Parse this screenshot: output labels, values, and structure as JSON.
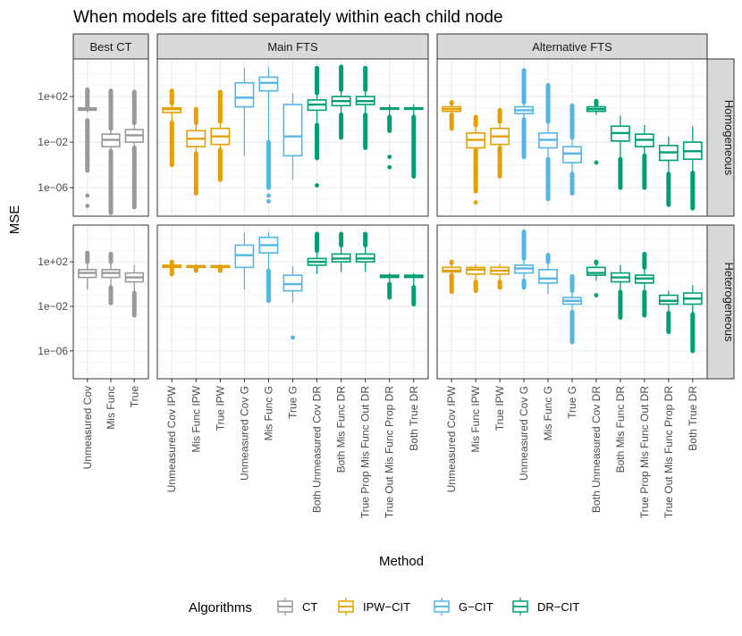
{
  "chart_data": {
    "type": "boxplot",
    "title": "When models are fitted separately within each child node",
    "xlabel": "Method",
    "ylabel": "MSE",
    "y_scale": "log10",
    "ylim_log10": [
      -8.5,
      5.3
    ],
    "y_ticks": [
      {
        "label": "1e+02",
        "log10": 2
      },
      {
        "label": "1e−02",
        "log10": -2
      },
      {
        "label": "1e−06",
        "log10": -6
      }
    ],
    "column_facets": [
      "Best CT",
      "Main FTS",
      "Alternative FTS"
    ],
    "row_facets": [
      "Homogeneous",
      "Heterogeneous"
    ],
    "legend": {
      "title": "Algorithms",
      "items": [
        {
          "key": "CT",
          "label": "CT",
          "color": "#999999"
        },
        {
          "key": "IPW",
          "label": "IPW−CIT",
          "color": "#E69F00"
        },
        {
          "key": "G",
          "label": "G−CIT",
          "color": "#56B4E9"
        },
        {
          "key": "DR",
          "label": "DR−CIT",
          "color": "#009E73"
        }
      ]
    },
    "panels": [
      {
        "col": 0,
        "row": 0,
        "boxes": [
          {
            "label": "Unmeasured Cov",
            "algo": "CT",
            "lo": 0.6,
            "q1": 0.8,
            "med": 0.9,
            "q3": 1.0,
            "hi": 1.1,
            "outliers": [
              [
                1.1,
                2.6
              ],
              [
                -0.1,
                -4.5
              ],
              -6.7,
              -7.6
            ]
          },
          {
            "label": "Mis Func",
            "algo": "CT",
            "lo": -2.8,
            "q1": -2.4,
            "med": -1.8,
            "q3": -1.3,
            "hi": -0.8,
            "outliers": [
              [
                -0.8,
                2.5
              ],
              [
                -2.8,
                -8.2
              ]
            ]
          },
          {
            "label": "True",
            "algo": "CT",
            "lo": -2.5,
            "q1": -2.0,
            "med": -1.4,
            "q3": -0.9,
            "hi": -0.3,
            "outliers": [
              [
                -0.3,
                2.4
              ],
              [
                -2.5,
                -7.7
              ]
            ]
          }
        ]
      },
      {
        "col": 1,
        "row": 0,
        "boxes": [
          {
            "label": "Unmeasured Cov IPW",
            "algo": "IPW",
            "lo": -0.3,
            "q1": 0.6,
            "med": 0.9,
            "q3": 1.0,
            "hi": 1.4,
            "outliers": [
              [
                1.4,
                2.5
              ],
              [
                -0.3,
                -4.0
              ]
            ]
          },
          {
            "label": "Mis Func IPW",
            "algo": "IPW",
            "lo": -3.0,
            "q1": -2.4,
            "med": -1.7,
            "q3": -1.0,
            "hi": -0.3,
            "outliers": [
              [
                -0.3,
                0.9
              ],
              [
                -3.0,
                -6.5
              ]
            ]
          },
          {
            "label": "True IPW",
            "algo": "IPW",
            "lo": -2.7,
            "q1": -2.2,
            "med": -1.5,
            "q3": -0.8,
            "hi": -0.2,
            "outliers": [
              [
                -0.2,
                2.4
              ],
              [
                -2.7,
                -5.3
              ]
            ]
          },
          {
            "label": "Unmeasured Cov G",
            "algo": "G",
            "lo": -3.2,
            "q1": 1.1,
            "med": 1.9,
            "q3": 3.2,
            "hi": 4.5,
            "outliers": []
          },
          {
            "label": "Mis Func G",
            "algo": "G",
            "lo": -2.0,
            "q1": 2.5,
            "med": 3.2,
            "q3": 3.7,
            "hi": 4.6,
            "outliers": [
              [
                -2.0,
                -6.0
              ],
              -6.7,
              -7.2
            ]
          },
          {
            "label": "True G",
            "algo": "G",
            "lo": -5.3,
            "q1": -3.2,
            "med": -1.5,
            "q3": 1.3,
            "hi": 2.3,
            "outliers": []
          },
          {
            "label": "Both Unmeasured Cov DR",
            "algo": "DR",
            "lo": -0.5,
            "q1": 0.8,
            "med": 1.3,
            "q3": 1.7,
            "hi": 2.3,
            "outliers": [
              [
                2.3,
                4.5
              ],
              [
                -0.5,
                -3.4
              ],
              -5.8
            ]
          },
          {
            "label": "Both Mis Func DR",
            "algo": "DR",
            "lo": 0.4,
            "q1": 1.2,
            "med": 1.6,
            "q3": 2.0,
            "hi": 2.6,
            "outliers": [
              [
                2.6,
                4.6
              ],
              [
                0.4,
                -1.6
              ]
            ]
          },
          {
            "label": "True Prop Mis Func Out DR",
            "algo": "DR",
            "lo": 0.4,
            "q1": 1.3,
            "med": 1.6,
            "q3": 2.0,
            "hi": 2.6,
            "outliers": [
              [
                2.6,
                4.5
              ],
              [
                0.4,
                -2.5
              ]
            ]
          },
          {
            "label": "True Out Mis Func Prop DR",
            "algo": "DR",
            "lo": 0.2,
            "q1": 0.9,
            "med": 0.95,
            "q3": 1.0,
            "hi": 1.3,
            "outliers": [
              [
                0.2,
                -1.0
              ],
              -3.3,
              -4.2
            ]
          },
          {
            "label": "Both True DR",
            "algo": "DR",
            "lo": 0.2,
            "q1": 0.9,
            "med": 0.95,
            "q3": 1.0,
            "hi": 1.3,
            "outliers": [
              [
                0.2,
                -5.0
              ]
            ]
          }
        ]
      },
      {
        "col": 2,
        "row": 0,
        "boxes": [
          {
            "label": "Unmeasured Cov IPW",
            "algo": "IPW",
            "lo": 0.4,
            "q1": 0.7,
            "med": 0.9,
            "q3": 1.1,
            "hi": 1.4,
            "outliers": [
              [
                1.4,
                1.5
              ],
              [
                0.4,
                -0.8
              ]
            ]
          },
          {
            "label": "Mis Func IPW",
            "algo": "IPW",
            "lo": -2.7,
            "q1": -2.5,
            "med": -1.8,
            "q3": -1.2,
            "hi": -0.5,
            "outliers": [
              [
                -0.5,
                0.2
              ],
              [
                -2.7,
                -6.3
              ],
              -7.3
            ]
          },
          {
            "label": "True IPW",
            "algo": "IPW",
            "lo": -2.5,
            "q1": -2.2,
            "med": -1.5,
            "q3": -0.8,
            "hi": -0.2,
            "outliers": [
              [
                -0.2,
                0.8
              ],
              [
                -2.5,
                -5.0
              ]
            ]
          },
          {
            "label": "Unmeasured Cov G",
            "algo": "G",
            "lo": 0.0,
            "q1": 0.5,
            "med": 0.8,
            "q3": 1.1,
            "hi": 1.5,
            "outliers": [
              [
                1.5,
                4.3
              ],
              [
                0.0,
                -3.3
              ]
            ]
          },
          {
            "label": "Mis Func G",
            "algo": "G",
            "lo": -3.5,
            "q1": -2.5,
            "med": -1.8,
            "q3": -1.2,
            "hi": -0.2,
            "outliers": [
              [
                -0.2,
                3.0
              ],
              [
                -3.5,
                -7.0
              ]
            ]
          },
          {
            "label": "True G",
            "algo": "G",
            "lo": -4.8,
            "q1": -3.8,
            "med": -3.0,
            "q3": -2.4,
            "hi": -1.6,
            "outliers": [
              [
                -1.6,
                1.2
              ],
              [
                -4.8,
                -6.5
              ]
            ]
          },
          {
            "label": "Both Unmeasured Cov DR",
            "algo": "DR",
            "lo": 0.4,
            "q1": 0.7,
            "med": 0.9,
            "q3": 1.1,
            "hi": 1.3,
            "outliers": [
              [
                1.3,
                1.6
              ],
              -3.8
            ]
          },
          {
            "label": "Both Mis Func DR",
            "algo": "DR",
            "lo": -3.5,
            "q1": -1.9,
            "med": -1.2,
            "q3": -0.6,
            "hi": 0.3,
            "outliers": [
              [
                -3.5,
                -6.0
              ]
            ]
          },
          {
            "label": "True Prop Mis Func Out DR",
            "algo": "DR",
            "lo": -3.2,
            "q1": -2.4,
            "med": -1.8,
            "q3": -1.3,
            "hi": -0.5,
            "outliers": [
              [
                -3.2,
                -6.0
              ]
            ]
          },
          {
            "label": "True Out Mis Func Prop DR",
            "algo": "DR",
            "lo": -4.8,
            "q1": -3.6,
            "med": -2.9,
            "q3": -2.3,
            "hi": -1.5,
            "outliers": [
              [
                -4.8,
                -7.5
              ]
            ]
          },
          {
            "label": "Both True DR",
            "algo": "DR",
            "lo": -4.7,
            "q1": -3.5,
            "med": -2.8,
            "q3": -2.0,
            "hi": -0.6,
            "outliers": [
              [
                -4.7,
                -7.8
              ]
            ]
          }
        ]
      },
      {
        "col": 0,
        "row": 1,
        "boxes": [
          {
            "label": "Unmeasured Cov",
            "algo": "CT",
            "lo": -0.5,
            "q1": 0.6,
            "med": 1.0,
            "q3": 1.3,
            "hi": 2.0,
            "outliers": [
              [
                2.0,
                2.8
              ]
            ]
          },
          {
            "label": "Mis Func",
            "algo": "CT",
            "lo": -0.3,
            "q1": 0.6,
            "med": 1.0,
            "q3": 1.3,
            "hi": 2.0,
            "outliers": [
              [
                2.0,
                2.7
              ],
              [
                -0.3,
                -1.7
              ]
            ]
          },
          {
            "label": "True",
            "algo": "CT",
            "lo": -0.8,
            "q1": 0.2,
            "med": 0.6,
            "q3": 1.0,
            "hi": 1.7,
            "outliers": [
              [
                -0.8,
                -2.8
              ]
            ]
          }
        ]
      },
      {
        "col": 1,
        "row": 1,
        "boxes": [
          {
            "label": "Unmeasured Cov IPW",
            "algo": "IPW",
            "lo": 1.3,
            "q1": 1.5,
            "med": 1.6,
            "q3": 1.7,
            "hi": 1.9,
            "outliers": [
              [
                1.9,
                2.0
              ],
              [
                1.3,
                0.9
              ]
            ]
          },
          {
            "label": "Mis Func IPW",
            "algo": "IPW",
            "lo": 1.4,
            "q1": 1.5,
            "med": 1.6,
            "q3": 1.65,
            "hi": 1.8,
            "outliers": [
              [
                1.4,
                1.2
              ]
            ]
          },
          {
            "label": "True IPW",
            "algo": "IPW",
            "lo": 1.4,
            "q1": 1.5,
            "med": 1.6,
            "q3": 1.65,
            "hi": 1.8,
            "outliers": [
              [
                1.4,
                1.2
              ]
            ]
          },
          {
            "label": "Unmeasured Cov G",
            "algo": "G",
            "lo": -0.5,
            "q1": 1.5,
            "med": 2.6,
            "q3": 3.5,
            "hi": 4.6,
            "outliers": []
          },
          {
            "label": "Mis Func G",
            "algo": "G",
            "lo": 1.2,
            "q1": 2.8,
            "med": 3.5,
            "q3": 4.2,
            "hi": 4.7,
            "outliers": [
              [
                1.2,
                -1.5
              ]
            ]
          },
          {
            "label": "True G",
            "algo": "G",
            "lo": -1.7,
            "q1": -0.6,
            "med": 0.0,
            "q3": 0.8,
            "hi": 1.6,
            "outliers": [
              -4.8
            ]
          },
          {
            "label": "Both Unmeasured Cov DR",
            "algo": "DR",
            "lo": 0.9,
            "q1": 1.7,
            "med": 2.0,
            "q3": 2.3,
            "hi": 3.0,
            "outliers": [
              [
                3.0,
                4.5
              ]
            ]
          },
          {
            "label": "Both Mis Func DR",
            "algo": "DR",
            "lo": 1.1,
            "q1": 2.0,
            "med": 2.3,
            "q3": 2.7,
            "hi": 3.5,
            "outliers": [
              [
                3.5,
                4.5
              ]
            ]
          },
          {
            "label": "True Prop Mis Func Out DR",
            "algo": "DR",
            "lo": 1.1,
            "q1": 2.0,
            "med": 2.3,
            "q3": 2.7,
            "hi": 3.5,
            "outliers": [
              [
                3.5,
                4.5
              ]
            ]
          },
          {
            "label": "True Out Mis Func Prop DR",
            "algo": "DR",
            "lo": 0.0,
            "q1": 0.6,
            "med": 0.7,
            "q3": 0.8,
            "hi": 1.0,
            "outliers": [
              [
                0.0,
                -1.2
              ]
            ]
          },
          {
            "label": "Both True DR",
            "algo": "DR",
            "lo": -0.3,
            "q1": 0.6,
            "med": 0.7,
            "q3": 0.8,
            "hi": 1.0,
            "outliers": [
              [
                -0.3,
                -1.8
              ]
            ]
          }
        ]
      },
      {
        "col": 2,
        "row": 1,
        "boxes": [
          {
            "label": "Unmeasured Cov IPW",
            "algo": "IPW",
            "lo": 0.8,
            "q1": 1.1,
            "med": 1.2,
            "q3": 1.5,
            "hi": 1.9,
            "outliers": [
              [
                1.9,
                2.0
              ],
              [
                0.8,
                -0.7
              ]
            ]
          },
          {
            "label": "Mis Func IPW",
            "algo": "IPW",
            "lo": 0.2,
            "q1": 0.9,
            "med": 1.3,
            "q3": 1.5,
            "hi": 1.8,
            "outliers": [
              [
                0.2,
                -0.6
              ]
            ]
          },
          {
            "label": "True IPW",
            "algo": "IPW",
            "lo": 0.2,
            "q1": 0.9,
            "med": 1.2,
            "q3": 1.5,
            "hi": 1.8,
            "outliers": [
              [
                0.2,
                -0.3
              ]
            ]
          },
          {
            "label": "Unmeasured Cov G",
            "algo": "G",
            "lo": 0.3,
            "q1": 1.0,
            "med": 1.4,
            "q3": 1.7,
            "hi": 2.3,
            "outliers": [
              [
                2.3,
                4.7
              ],
              [
                0.3,
                -0.3
              ]
            ]
          },
          {
            "label": "Mis Func G",
            "algo": "G",
            "lo": -0.9,
            "q1": 0.1,
            "med": 0.5,
            "q3": 1.3,
            "hi": 2.0,
            "outliers": [
              [
                2.0,
                2.6
              ]
            ]
          },
          {
            "label": "True G",
            "algo": "G",
            "lo": -2.5,
            "q1": -1.8,
            "med": -1.5,
            "q3": -1.2,
            "hi": -0.6,
            "outliers": [
              [
                -0.6,
                0.7
              ],
              [
                -2.5,
                -5.2
              ]
            ]
          },
          {
            "label": "Both Unmeasured Cov DR",
            "algo": "DR",
            "lo": 0.3,
            "q1": 0.8,
            "med": 1.0,
            "q3": 1.5,
            "hi": 1.9,
            "outliers": [
              [
                1.9,
                2.0
              ],
              -1.0
            ]
          },
          {
            "label": "Both Mis Func DR",
            "algo": "DR",
            "lo": -0.7,
            "q1": 0.2,
            "med": 0.6,
            "q3": 1.0,
            "hi": 1.7,
            "outliers": [
              [
                -0.7,
                -3.0
              ]
            ]
          },
          {
            "label": "True Prop Mis Func Out DR",
            "algo": "DR",
            "lo": -0.7,
            "q1": 0.1,
            "med": 0.5,
            "q3": 0.8,
            "hi": 1.5,
            "outliers": [
              [
                1.5,
                2.7
              ],
              [
                -0.7,
                -2.8
              ]
            ]
          },
          {
            "label": "True Out Mis Func Prop DR",
            "algo": "DR",
            "lo": -2.6,
            "q1": -1.8,
            "med": -1.5,
            "q3": -1.0,
            "hi": -0.6,
            "outliers": [
              [
                -2.6,
                -4.3
              ]
            ]
          },
          {
            "label": "Both True DR",
            "algo": "DR",
            "lo": -2.7,
            "q1": -1.8,
            "med": -1.3,
            "q3": -0.8,
            "hi": -0.1,
            "outliers": [
              [
                -2.7,
                -6.0
              ]
            ]
          }
        ]
      }
    ]
  }
}
